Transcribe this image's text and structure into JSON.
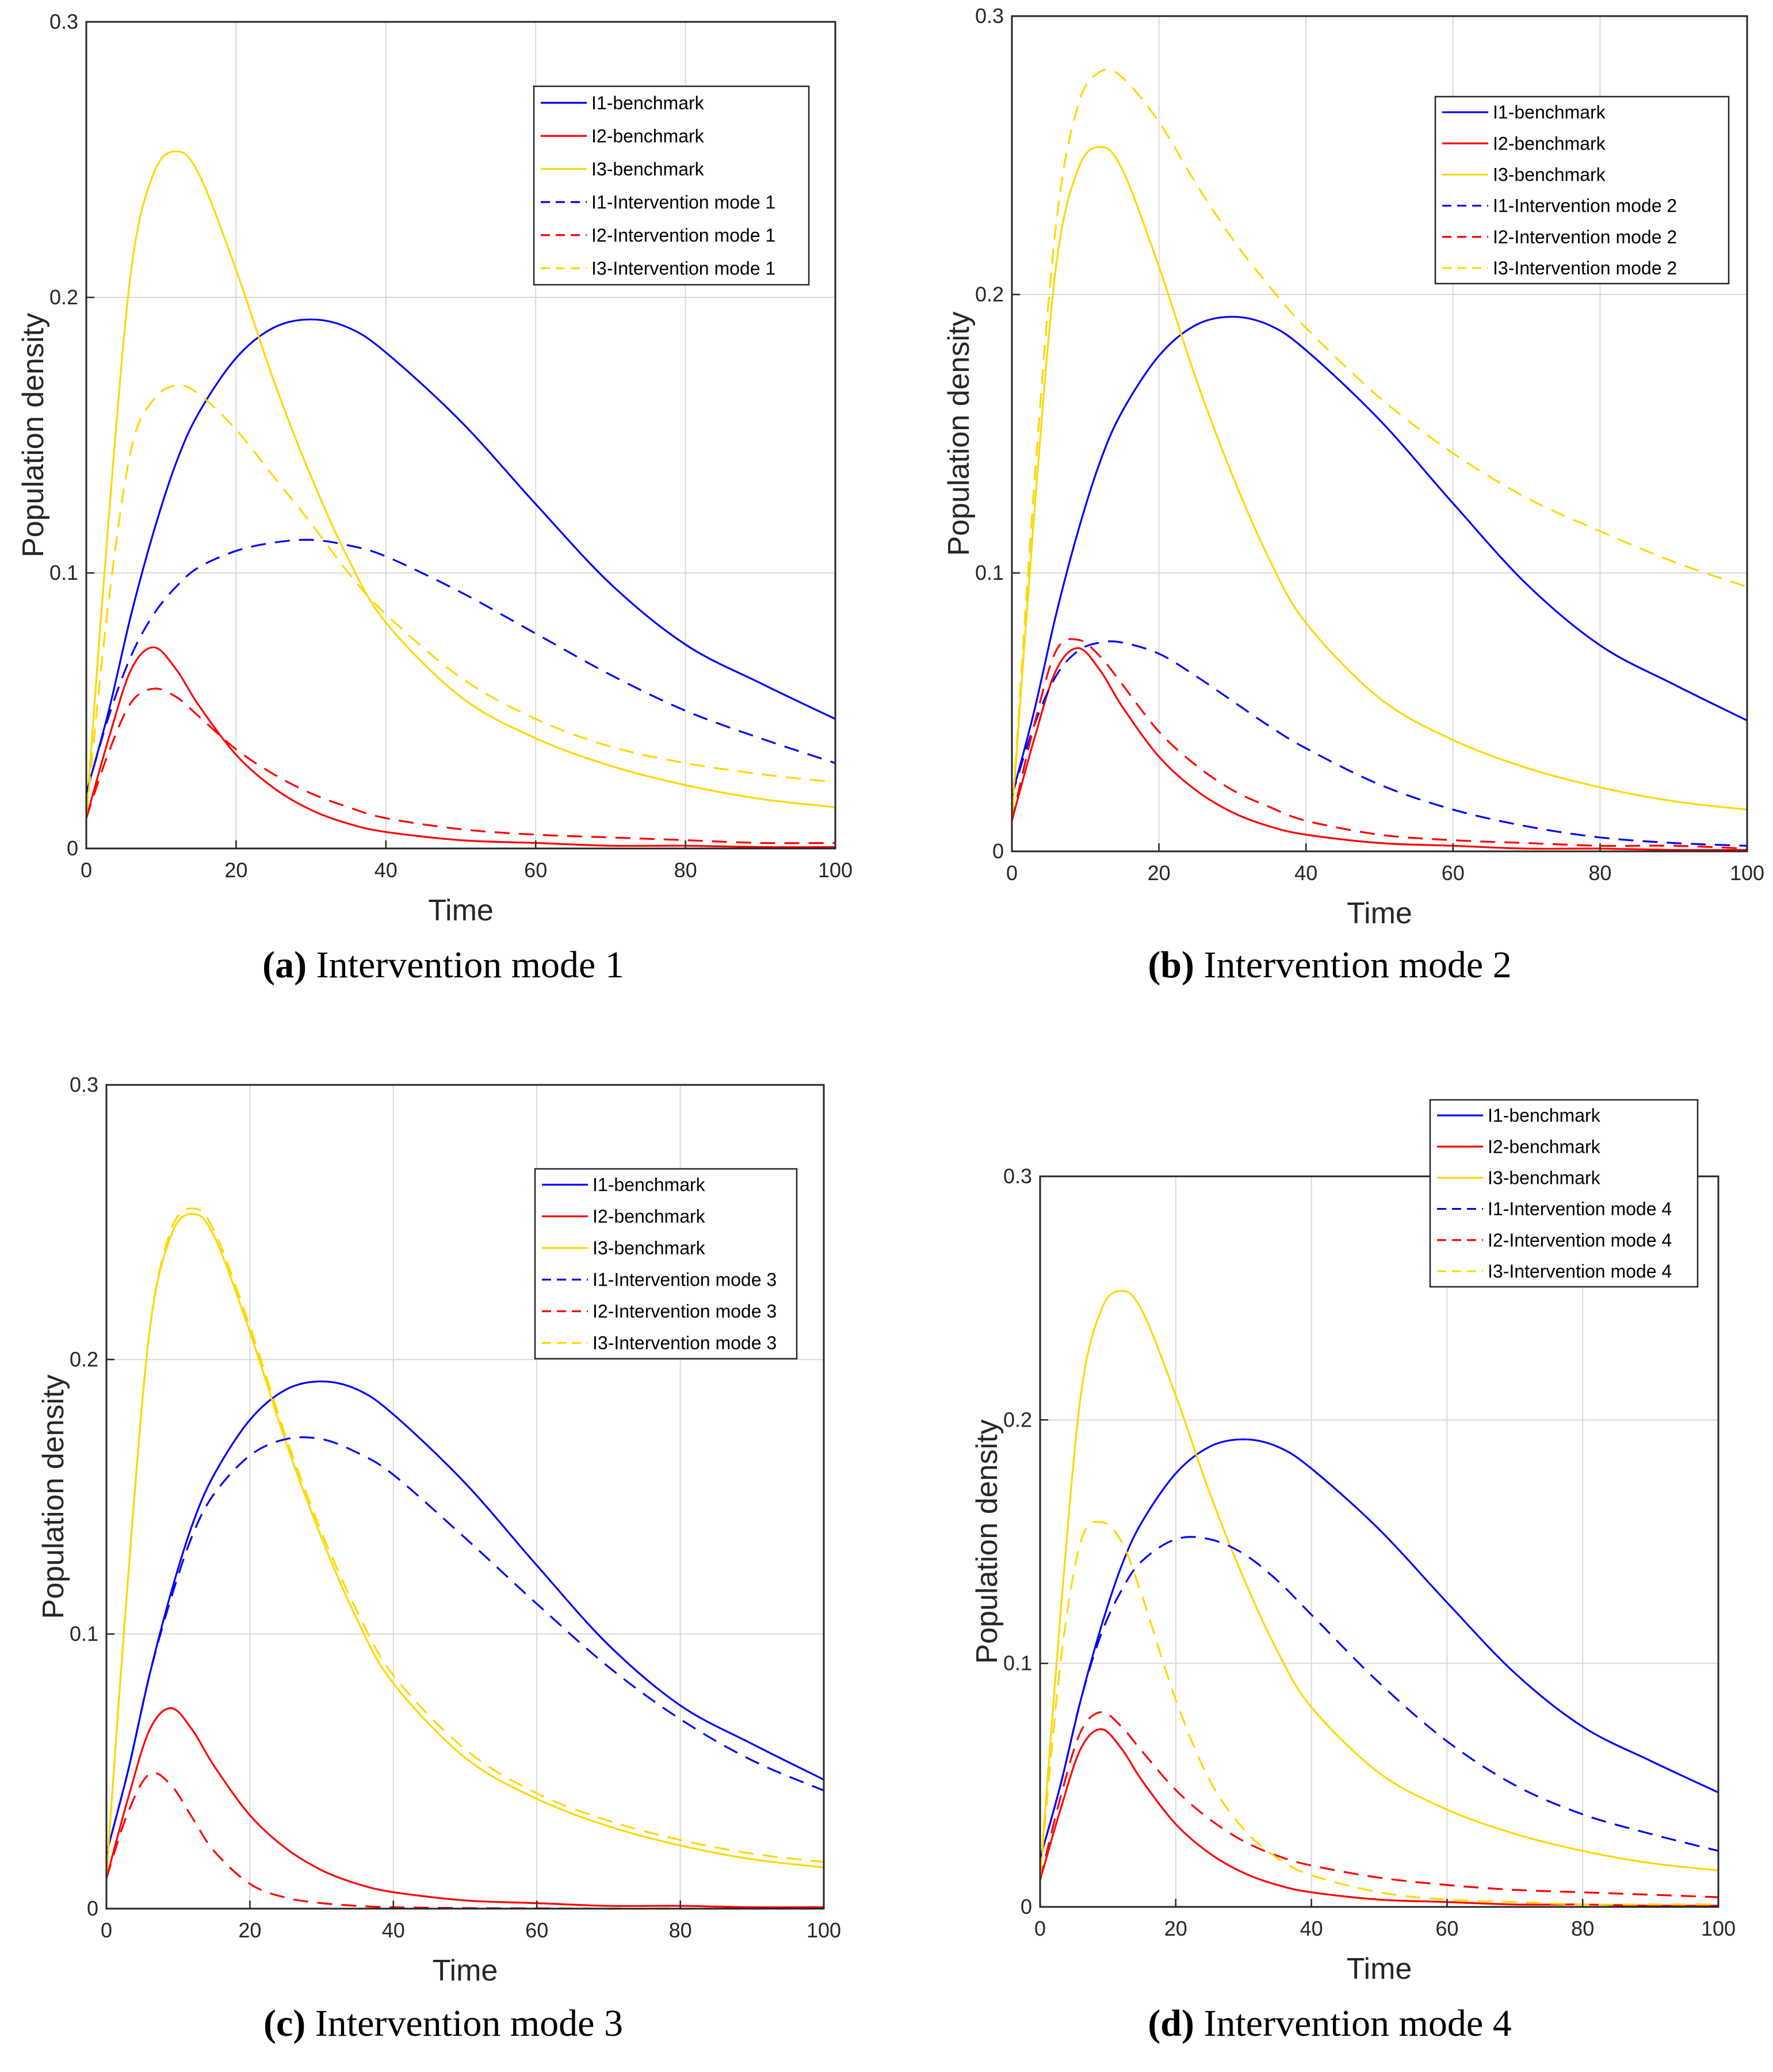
{
  "colors": {
    "I1": "#0000ff",
    "I2": "#ff0000",
    "I3": "#ffd700",
    "grid": "#d9d9d9",
    "axis": "#262626"
  },
  "panels": [
    {
      "id": "a",
      "caption_letter": "(a)",
      "caption_text": " Intervention mode 1",
      "chart_data": {
        "type": "line",
        "title": "",
        "xlabel": "Time",
        "ylabel": "Population density",
        "xlim": [
          0,
          100
        ],
        "ylim": [
          0,
          0.3
        ],
        "xticks": [
          "0",
          "20",
          "40",
          "60",
          "80",
          "100"
        ],
        "yticks": [
          "0",
          "0.1",
          "0.2",
          "0.3"
        ],
        "grid": true,
        "legend_position": "top-right",
        "x": [
          0,
          3,
          6,
          9,
          12,
          15,
          20,
          25,
          30,
          35,
          40,
          50,
          60,
          70,
          80,
          90,
          100
        ],
        "series": [
          {
            "name": "I1-benchmark",
            "color": "I1",
            "dashed": false,
            "values": [
              0.02,
              0.05,
              0.085,
              0.115,
              0.14,
              0.158,
              0.178,
              0.189,
              0.192,
              0.189,
              0.18,
              0.155,
              0.125,
              0.096,
              0.074,
              0.06,
              0.047
            ]
          },
          {
            "name": "I2-benchmark",
            "color": "I2",
            "dashed": false,
            "values": [
              0.011,
              0.04,
              0.065,
              0.073,
              0.065,
              0.052,
              0.034,
              0.022,
              0.014,
              0.009,
              0.006,
              0.003,
              0.002,
              0.001,
              0.001,
              0.0005,
              0.0005
            ]
          },
          {
            "name": "I3-benchmark",
            "color": "I3",
            "dashed": false,
            "values": [
              0.012,
              0.12,
              0.21,
              0.245,
              0.253,
              0.245,
              0.21,
              0.17,
              0.135,
              0.105,
              0.082,
              0.055,
              0.04,
              0.03,
              0.023,
              0.018,
              0.015
            ]
          },
          {
            "name": "I1-Intervention mode 1",
            "color": "I1",
            "dashed": true,
            "values": [
              0.02,
              0.048,
              0.07,
              0.085,
              0.095,
              0.102,
              0.108,
              0.111,
              0.112,
              0.11,
              0.106,
              0.093,
              0.078,
              0.063,
              0.05,
              0.04,
              0.031
            ]
          },
          {
            "name": "I2-Intervention mode 1",
            "color": "I2",
            "dashed": true,
            "values": [
              0.011,
              0.035,
              0.053,
              0.058,
              0.055,
              0.048,
              0.036,
              0.027,
              0.02,
              0.015,
              0.011,
              0.007,
              0.005,
              0.004,
              0.003,
              0.002,
              0.002
            ]
          },
          {
            "name": "I3-Intervention mode 1",
            "color": "I3",
            "dashed": true,
            "values": [
              0.012,
              0.09,
              0.145,
              0.163,
              0.168,
              0.165,
              0.152,
              0.135,
              0.118,
              0.1,
              0.085,
              0.062,
              0.047,
              0.037,
              0.031,
              0.027,
              0.024
            ]
          }
        ]
      }
    },
    {
      "id": "b",
      "caption_letter": "(b)",
      "caption_text": " Intervention mode 2",
      "chart_data": {
        "type": "line",
        "title": "",
        "xlabel": "Time",
        "ylabel": "Population density",
        "xlim": [
          0,
          100
        ],
        "ylim": [
          0,
          0.3
        ],
        "xticks": [
          "0",
          "20",
          "40",
          "60",
          "80",
          "100"
        ],
        "yticks": [
          "0",
          "0.1",
          "0.2",
          "0.3"
        ],
        "grid": true,
        "legend_position": "top-right",
        "x": [
          0,
          3,
          6,
          9,
          12,
          15,
          20,
          25,
          30,
          35,
          40,
          50,
          60,
          70,
          80,
          90,
          100
        ],
        "series": [
          {
            "name": "I1-benchmark",
            "color": "I1",
            "dashed": false,
            "values": [
              0.02,
              0.05,
              0.085,
              0.115,
              0.14,
              0.158,
              0.178,
              0.189,
              0.192,
              0.189,
              0.18,
              0.155,
              0.125,
              0.096,
              0.074,
              0.06,
              0.047
            ]
          },
          {
            "name": "I2-benchmark",
            "color": "I2",
            "dashed": false,
            "values": [
              0.011,
              0.04,
              0.065,
              0.073,
              0.065,
              0.052,
              0.034,
              0.022,
              0.014,
              0.009,
              0.006,
              0.003,
              0.002,
              0.001,
              0.001,
              0.0005,
              0.0005
            ]
          },
          {
            "name": "I3-benchmark",
            "color": "I3",
            "dashed": false,
            "values": [
              0.012,
              0.12,
              0.21,
              0.245,
              0.253,
              0.245,
              0.21,
              0.17,
              0.135,
              0.105,
              0.082,
              0.055,
              0.04,
              0.03,
              0.023,
              0.018,
              0.015
            ]
          },
          {
            "name": "I1-Intervention mode 2",
            "color": "I1",
            "dashed": true,
            "values": [
              0.02,
              0.045,
              0.063,
              0.072,
              0.075,
              0.075,
              0.071,
              0.063,
              0.054,
              0.045,
              0.037,
              0.024,
              0.015,
              0.009,
              0.005,
              0.003,
              0.002
            ]
          },
          {
            "name": "I2-Intervention mode 2",
            "color": "I2",
            "dashed": true,
            "values": [
              0.011,
              0.045,
              0.072,
              0.076,
              0.07,
              0.06,
              0.043,
              0.031,
              0.022,
              0.016,
              0.011,
              0.006,
              0.004,
              0.003,
              0.002,
              0.002,
              0.001
            ]
          },
          {
            "name": "I3-Intervention mode 2",
            "color": "I3",
            "dashed": true,
            "values": [
              0.012,
              0.13,
              0.225,
              0.268,
              0.28,
              0.278,
              0.262,
              0.24,
              0.22,
              0.203,
              0.188,
              0.163,
              0.143,
              0.127,
              0.115,
              0.104,
              0.095
            ]
          }
        ]
      }
    },
    {
      "id": "c",
      "caption_letter": "(c)",
      "caption_text": " Intervention mode 3",
      "chart_data": {
        "type": "line",
        "title": "",
        "xlabel": "Time",
        "ylabel": "Population density",
        "xlim": [
          0,
          100
        ],
        "ylim": [
          0,
          0.3
        ],
        "xticks": [
          "0",
          "20",
          "40",
          "60",
          "80",
          "100"
        ],
        "yticks": [
          "0",
          "0.1",
          "0.2",
          "0.3"
        ],
        "grid": true,
        "legend_position": "top-right",
        "x": [
          0,
          3,
          6,
          9,
          12,
          15,
          20,
          25,
          30,
          35,
          40,
          50,
          60,
          70,
          80,
          90,
          100
        ],
        "series": [
          {
            "name": "I1-benchmark",
            "color": "I1",
            "dashed": false,
            "values": [
              0.02,
              0.05,
              0.085,
              0.115,
              0.14,
              0.158,
              0.178,
              0.189,
              0.192,
              0.189,
              0.18,
              0.155,
              0.125,
              0.096,
              0.074,
              0.06,
              0.047
            ]
          },
          {
            "name": "I2-benchmark",
            "color": "I2",
            "dashed": false,
            "values": [
              0.011,
              0.04,
              0.065,
              0.073,
              0.065,
              0.052,
              0.034,
              0.022,
              0.014,
              0.009,
              0.006,
              0.003,
              0.002,
              0.001,
              0.001,
              0.0005,
              0.0005
            ]
          },
          {
            "name": "I3-benchmark",
            "color": "I3",
            "dashed": false,
            "values": [
              0.012,
              0.12,
              0.21,
              0.245,
              0.253,
              0.245,
              0.21,
              0.17,
              0.135,
              0.105,
              0.082,
              0.055,
              0.04,
              0.03,
              0.023,
              0.018,
              0.015
            ]
          },
          {
            "name": "I1-Intervention mode 3",
            "color": "I1",
            "dashed": true,
            "values": [
              0.02,
              0.05,
              0.085,
              0.113,
              0.136,
              0.151,
              0.165,
              0.171,
              0.171,
              0.166,
              0.158,
              0.135,
              0.111,
              0.088,
              0.069,
              0.054,
              0.043
            ]
          },
          {
            "name": "I2-Intervention mode 3",
            "color": "I2",
            "dashed": true,
            "values": [
              0.011,
              0.035,
              0.049,
              0.045,
              0.033,
              0.021,
              0.009,
              0.004,
              0.002,
              0.001,
              0.0005,
              0.0002,
              0.0001,
              0,
              0,
              0,
              0
            ]
          },
          {
            "name": "I3-Intervention mode 3",
            "color": "I3",
            "dashed": true,
            "values": [
              0.012,
              0.12,
              0.21,
              0.247,
              0.255,
              0.247,
              0.212,
              0.172,
              0.137,
              0.108,
              0.085,
              0.058,
              0.042,
              0.032,
              0.025,
              0.02,
              0.017
            ]
          }
        ]
      }
    },
    {
      "id": "d",
      "caption_letter": "(d)",
      "caption_text": " Intervention mode 4",
      "chart_data": {
        "type": "line",
        "title": "",
        "xlabel": "Time",
        "ylabel": "Population density",
        "xlim": [
          0,
          100
        ],
        "ylim": [
          0,
          0.3
        ],
        "xticks": [
          "0",
          "20",
          "40",
          "60",
          "80",
          "100"
        ],
        "yticks": [
          "0",
          "0.1",
          "0.2",
          "0.3"
        ],
        "grid": true,
        "legend_position": "top-right",
        "x": [
          0,
          3,
          6,
          9,
          12,
          15,
          20,
          25,
          30,
          35,
          40,
          50,
          60,
          70,
          80,
          90,
          100
        ],
        "series": [
          {
            "name": "I1-benchmark",
            "color": "I1",
            "dashed": false,
            "values": [
              0.02,
              0.05,
              0.085,
              0.115,
              0.14,
              0.158,
              0.178,
              0.189,
              0.192,
              0.189,
              0.18,
              0.155,
              0.125,
              0.096,
              0.074,
              0.06,
              0.047
            ]
          },
          {
            "name": "I2-benchmark",
            "color": "I2",
            "dashed": false,
            "values": [
              0.011,
              0.04,
              0.065,
              0.073,
              0.065,
              0.052,
              0.034,
              0.022,
              0.014,
              0.009,
              0.006,
              0.003,
              0.002,
              0.001,
              0.001,
              0.0005,
              0.0005
            ]
          },
          {
            "name": "I3-benchmark",
            "color": "I3",
            "dashed": false,
            "values": [
              0.012,
              0.12,
              0.21,
              0.245,
              0.253,
              0.245,
              0.21,
              0.17,
              0.135,
              0.105,
              0.082,
              0.055,
              0.04,
              0.03,
              0.023,
              0.018,
              0.015
            ]
          },
          {
            "name": "I1-Intervention mode 4",
            "color": "I1",
            "dashed": true,
            "values": [
              0.02,
              0.05,
              0.085,
              0.112,
              0.13,
              0.142,
              0.151,
              0.151,
              0.145,
              0.134,
              0.12,
              0.092,
              0.068,
              0.05,
              0.038,
              0.03,
              0.023
            ]
          },
          {
            "name": "I2-Intervention mode 4",
            "color": "I2",
            "dashed": true,
            "values": [
              0.011,
              0.045,
              0.072,
              0.08,
              0.074,
              0.064,
              0.048,
              0.036,
              0.027,
              0.021,
              0.017,
              0.012,
              0.009,
              0.007,
              0.006,
              0.005,
              0.004
            ]
          },
          {
            "name": "I3-Intervention mode 4",
            "color": "I3",
            "dashed": true,
            "values": [
              0.012,
              0.1,
              0.15,
              0.158,
              0.15,
              0.128,
              0.085,
              0.052,
              0.032,
              0.02,
              0.013,
              0.006,
              0.003,
              0.002,
              0.001,
              0.001,
              0.001
            ]
          }
        ]
      }
    }
  ]
}
